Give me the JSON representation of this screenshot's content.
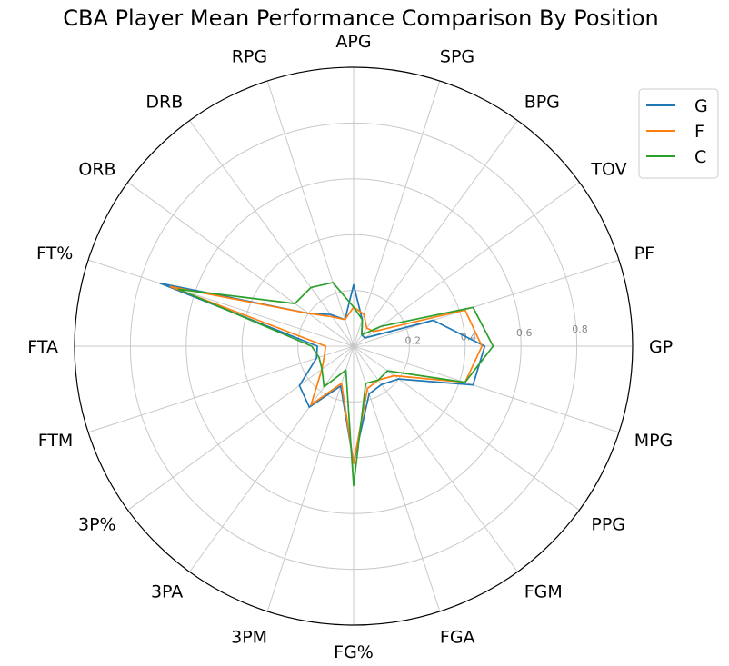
{
  "chart_data": {
    "type": "radar",
    "title": "CBA Player Mean Performance Comparison By Position",
    "categories": [
      "GP",
      "PF",
      "TOV",
      "BPG",
      "SPG",
      "APG",
      "RPG",
      "DRB",
      "ORB",
      "FT%",
      "FTA",
      "FTM",
      "3P%",
      "3PA",
      "3PM",
      "FG%",
      "FGA",
      "FGM",
      "PPG",
      "MPG"
    ],
    "rlim": [
      0,
      1.0
    ],
    "radial_ticks": [
      0.2,
      0.4,
      0.6,
      0.8
    ],
    "radial_tick_labels": [
      "0.2",
      "0.4",
      "0.6",
      "0.8"
    ],
    "grid": true,
    "legend_position": "top-right",
    "series": [
      {
        "name": "G",
        "color": "#1f77b4",
        "values": [
          0.47,
          0.3,
          0.05,
          0.05,
          0.1,
          0.22,
          0.1,
          0.14,
          0.2,
          0.73,
          0.13,
          0.14,
          0.24,
          0.27,
          0.15,
          0.42,
          0.18,
          0.17,
          0.2,
          0.45
        ]
      },
      {
        "name": "F",
        "color": "#ff7f0e",
        "values": [
          0.46,
          0.42,
          0.09,
          0.08,
          0.12,
          0.14,
          0.1,
          0.13,
          0.2,
          0.69,
          0.1,
          0.11,
          0.14,
          0.26,
          0.14,
          0.42,
          0.16,
          0.15,
          0.18,
          0.42
        ]
      },
      {
        "name": "C",
        "color": "#2ca02c",
        "values": [
          0.5,
          0.45,
          0.12,
          0.05,
          0.1,
          0.14,
          0.24,
          0.26,
          0.26,
          0.66,
          0.15,
          0.13,
          0.14,
          0.18,
          0.09,
          0.5,
          0.14,
          0.15,
          0.15,
          0.42
        ]
      }
    ]
  }
}
